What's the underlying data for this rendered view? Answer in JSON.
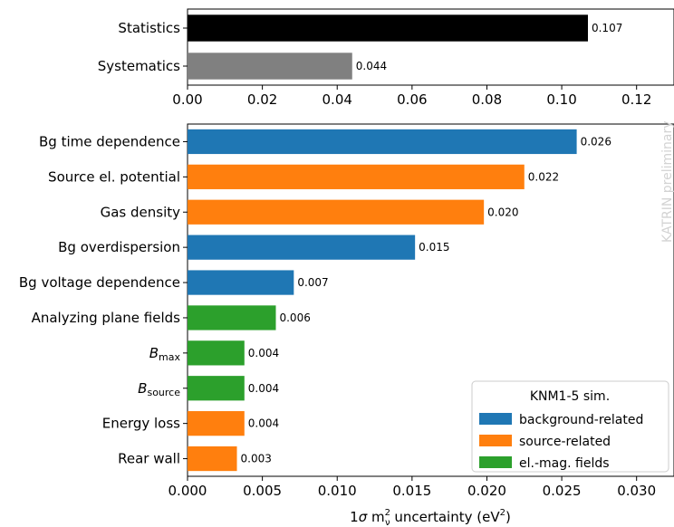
{
  "colors": {
    "background-related": "#1f77b4",
    "source-related": "#ff7f0e",
    "el.-mag. fields": "#2ca02c",
    "statistics": "#000000",
    "systematics": "#808080"
  },
  "watermark": "KATRIN preliminary",
  "chart_data": [
    {
      "type": "bar",
      "orientation": "horizontal",
      "categories": [
        "Statistics",
        "Systematics"
      ],
      "values": [
        0.107,
        0.044
      ],
      "data_labels": [
        "0.107",
        "0.044"
      ],
      "bar_colors": [
        "statistics",
        "systematics"
      ],
      "xlim": [
        0,
        0.13
      ],
      "xticks": [
        0.0,
        0.02,
        0.04,
        0.06,
        0.08,
        0.1,
        0.12
      ],
      "xtick_labels": [
        "0.00",
        "0.02",
        "0.04",
        "0.06",
        "0.08",
        "0.10",
        "0.12"
      ],
      "grid": false
    },
    {
      "type": "bar",
      "orientation": "horizontal",
      "categories": [
        {
          "main": "Bg time dependence",
          "sub": ""
        },
        {
          "main": "Source el. potential",
          "sub": ""
        },
        {
          "main": "Gas density",
          "sub": ""
        },
        {
          "main": "Bg overdispersion",
          "sub": ""
        },
        {
          "main": "Bg voltage dependence",
          "sub": ""
        },
        {
          "main": "Analyzing plane fields",
          "sub": ""
        },
        {
          "main": "B",
          "sub": "max"
        },
        {
          "main": "B",
          "sub": "source"
        },
        {
          "main": "Energy loss",
          "sub": ""
        },
        {
          "main": "Rear wall",
          "sub": ""
        }
      ],
      "values": [
        0.026,
        0.0225,
        0.0198,
        0.0152,
        0.0071,
        0.0059,
        0.0038,
        0.0038,
        0.0038,
        0.0033
      ],
      "data_labels": [
        "0.026",
        "0.022",
        "0.020",
        "0.015",
        "0.007",
        "0.006",
        "0.004",
        "0.004",
        "0.004",
        "0.003"
      ],
      "groups": [
        "background-related",
        "source-related",
        "source-related",
        "background-related",
        "background-related",
        "el.-mag. fields",
        "el.-mag. fields",
        "el.-mag. fields",
        "source-related",
        "source-related"
      ],
      "xlim": [
        0,
        0.0325
      ],
      "xticks": [
        0.0,
        0.005,
        0.01,
        0.015,
        0.02,
        0.025,
        0.03
      ],
      "xtick_labels": [
        "0.000",
        "0.005",
        "0.010",
        "0.015",
        "0.020",
        "0.025",
        "0.030"
      ],
      "xlabel_parts": {
        "pre": "1",
        "sigma": "σ",
        "m": " m",
        "sup": "2",
        "sub": "ν",
        "post": " uncertainty (eV",
        "unit_sup": "2",
        "close": ")"
      },
      "legend": {
        "title": "KNM1-5 sim.",
        "placement": "lower-right",
        "entries": [
          "background-related",
          "source-related",
          "el.-mag. fields"
        ]
      },
      "grid": false
    }
  ]
}
